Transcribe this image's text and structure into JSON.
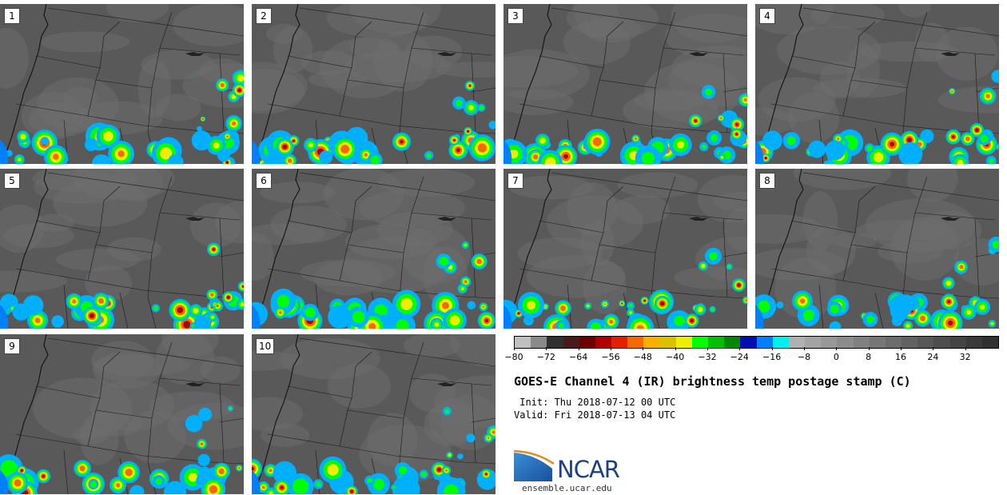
{
  "panels": [
    {
      "label": "1"
    },
    {
      "label": "2"
    },
    {
      "label": "3"
    },
    {
      "label": "4"
    },
    {
      "label": "5"
    },
    {
      "label": "6"
    },
    {
      "label": "7"
    },
    {
      "label": "8"
    },
    {
      "label": "9"
    },
    {
      "label": "10"
    }
  ],
  "colorbar": {
    "colors": [
      "#c0c0c0",
      "#8a8a8a",
      "#303030",
      "#4a1a1a",
      "#6e0000",
      "#b00000",
      "#e32000",
      "#f46a00",
      "#f7b000",
      "#dcc100",
      "#eeee00",
      "#00ff00",
      "#00c000",
      "#008800",
      "#0010b0",
      "#0080ff",
      "#00f0f0",
      "#b0b0b0",
      "#a4a4a4",
      "#989898",
      "#8c8c8c",
      "#808080",
      "#767676",
      "#6c6c6c",
      "#626262",
      "#585858",
      "#4e4e4e",
      "#444444",
      "#3a3a3a",
      "#303030"
    ],
    "ticks": [
      "−80",
      "−72",
      "−64",
      "−56",
      "−48",
      "−40",
      "−32",
      "−24",
      "−16",
      "−8",
      "0",
      "8",
      "16",
      "24",
      "32"
    ]
  },
  "title": "GOES-E Channel 4 (IR) brightness temp postage stamp (C)",
  "init_line": " Init: Thu 2018-07-12 00 UTC",
  "valid_line": "Valid: Fri 2018-07-13 04 UTC",
  "logo": {
    "text": "NCAR",
    "url": "ensemble.ucar.edu"
  }
}
